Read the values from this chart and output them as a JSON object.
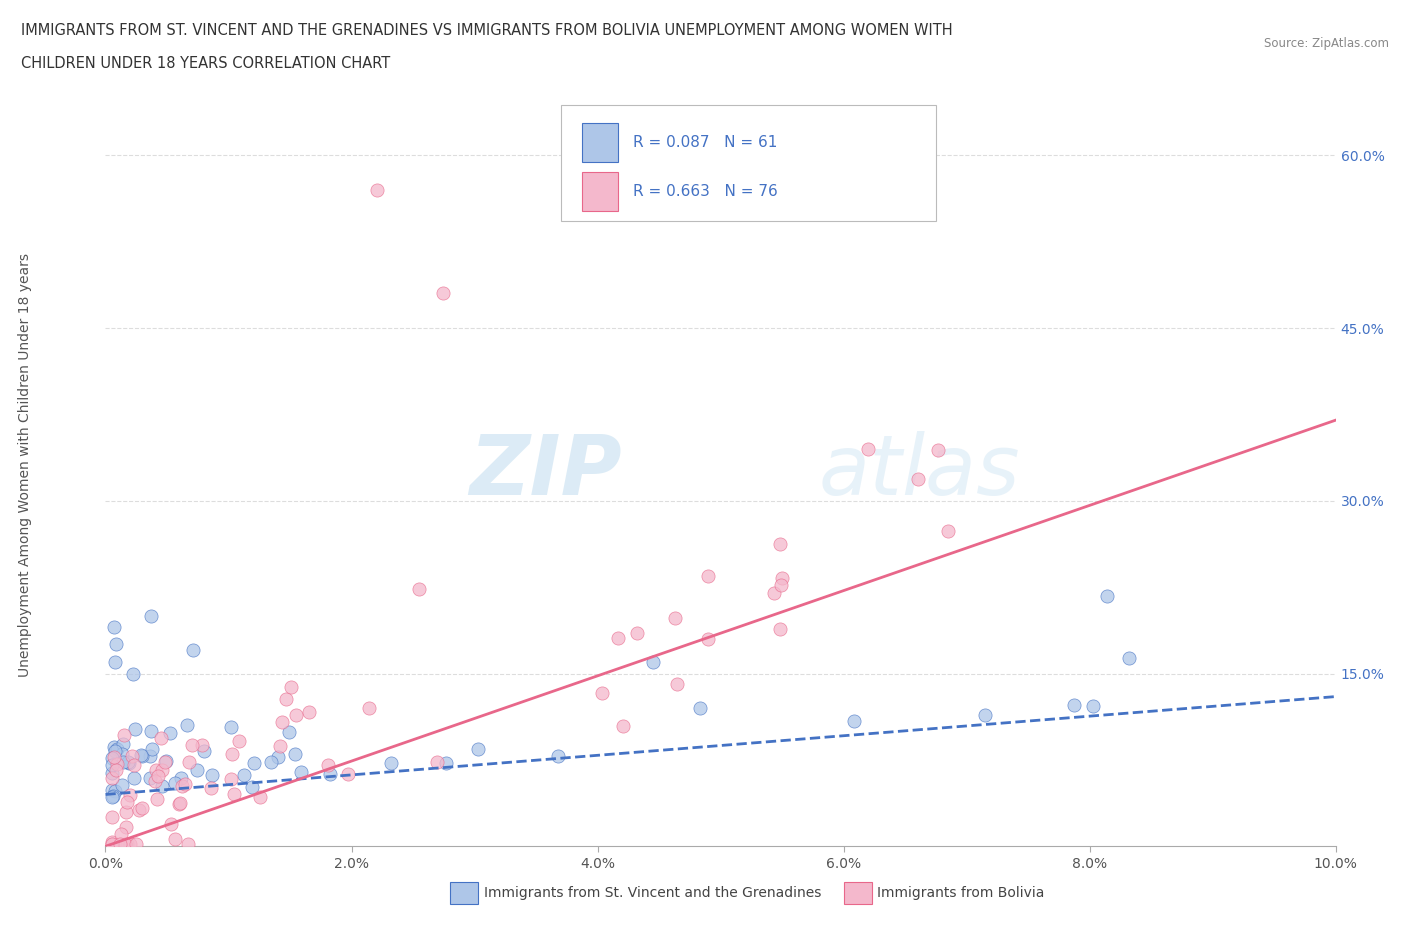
{
  "title_line1": "IMMIGRANTS FROM ST. VINCENT AND THE GRENADINES VS IMMIGRANTS FROM BOLIVIA UNEMPLOYMENT AMONG WOMEN WITH",
  "title_line2": "CHILDREN UNDER 18 YEARS CORRELATION CHART",
  "source_text": "Source: ZipAtlas.com",
  "ylabel": "Unemployment Among Women with Children Under 18 years",
  "xlim": [
    0.0,
    0.1
  ],
  "ylim": [
    0.0,
    0.65
  ],
  "xtick_labels": [
    "0.0%",
    "2.0%",
    "4.0%",
    "6.0%",
    "8.0%",
    "10.0%"
  ],
  "xtick_vals": [
    0.0,
    0.02,
    0.04,
    0.06,
    0.08,
    0.1
  ],
  "ytick_labels": [
    "15.0%",
    "30.0%",
    "45.0%",
    "60.0%"
  ],
  "ytick_vals": [
    0.15,
    0.3,
    0.45,
    0.6
  ],
  "color_blue_fill": "#aec6e8",
  "color_pink_fill": "#f4b8cc",
  "color_blue_edge": "#4472c4",
  "color_pink_edge": "#e8678a",
  "color_blue_line": "#4472c4",
  "color_pink_line": "#e8678a",
  "legend_label1": "Immigrants from St. Vincent and the Grenadines",
  "legend_label2": "Immigrants from Bolivia",
  "watermark_zip": "ZIP",
  "watermark_atlas": "atlas",
  "background_color": "#ffffff",
  "grid_color": "#dddddd",
  "title_color": "#333333",
  "source_color": "#888888",
  "tick_color_x": "#555555",
  "tick_color_y": "#4472c4",
  "ylabel_color": "#555555"
}
